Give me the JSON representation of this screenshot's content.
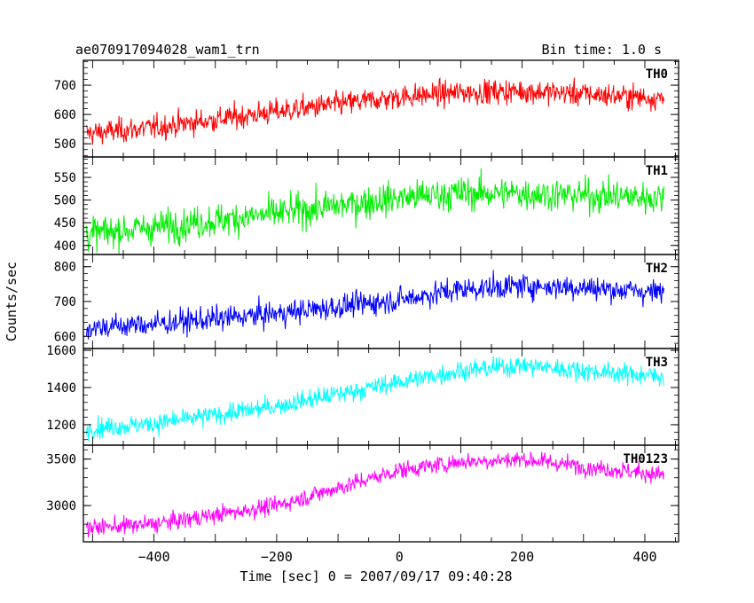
{
  "header": {
    "title": "ae070917094028_wam1_trn",
    "bin_time": "Bin time: 1.0 s"
  },
  "chart_data": {
    "type": "line",
    "xlabel": "Time [sec] 0 = 2007/09/17 09:40:28",
    "ylabel": "Counts/sec",
    "xlim": [
      -515,
      455
    ],
    "x_ticks": [
      -400,
      -200,
      0,
      200,
      400
    ],
    "x_tick_labels": [
      "−400",
      "−200",
      "0",
      "200",
      "400"
    ],
    "x_range": [
      -510,
      431
    ],
    "bin": 1.0,
    "series": [
      {
        "name": "TH0",
        "color": "#ff0000",
        "ylim": [
          455,
          785
        ],
        "yticks": [
          500,
          600,
          700
        ],
        "trend_x": [
          -510,
          -400,
          -200,
          0,
          100,
          200,
          300,
          431
        ],
        "trend_y": [
          535,
          555,
          610,
          660,
          675,
          680,
          670,
          655
        ],
        "noise": 38
      },
      {
        "name": "TH1",
        "color": "#00ee00",
        "ylim": [
          380,
          595
        ],
        "yticks": [
          400,
          450,
          500,
          550
        ],
        "trend_x": [
          -510,
          -400,
          -200,
          0,
          100,
          200,
          300,
          431
        ],
        "trend_y": [
          425,
          440,
          470,
          505,
          515,
          515,
          510,
          505
        ],
        "noise": 33
      },
      {
        "name": "TH2",
        "color": "#0000ff",
        "ylim": [
          565,
          835
        ],
        "yticks": [
          600,
          700,
          800
        ],
        "trend_x": [
          -510,
          -400,
          -200,
          0,
          100,
          200,
          300,
          431
        ],
        "trend_y": [
          625,
          635,
          665,
          705,
          735,
          745,
          740,
          725
        ],
        "noise": 32
      },
      {
        "name": "TH3",
        "color": "#00ffff",
        "ylim": [
          1090,
          1610
        ],
        "yticks": [
          1200,
          1400,
          1600
        ],
        "trend_x": [
          -510,
          -400,
          -200,
          0,
          100,
          200,
          300,
          431
        ],
        "trend_y": [
          1180,
          1205,
          1300,
          1430,
          1490,
          1520,
          1490,
          1460
        ],
        "noise": 48
      },
      {
        "name": "TH0123",
        "color": "#ff00ff",
        "ylim": [
          2610,
          3650
        ],
        "yticks": [
          3000,
          3500
        ],
        "trend_x": [
          -510,
          -400,
          -200,
          0,
          100,
          200,
          300,
          431
        ],
        "trend_y": [
          2760,
          2800,
          3000,
          3380,
          3470,
          3500,
          3420,
          3330
        ],
        "noise": 85
      }
    ]
  }
}
